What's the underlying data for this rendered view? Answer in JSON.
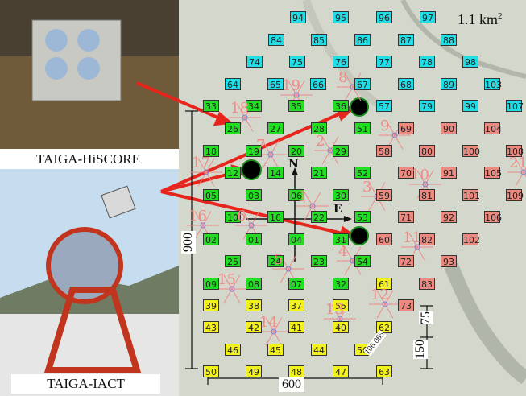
{
  "area_label": "1.1 km",
  "area_exponent": "2",
  "photo_labels": {
    "hiscore": "TAIGA-HiSCORE",
    "iact": "TAIGA-IACT"
  },
  "dimensions": {
    "width": "600",
    "height": "900",
    "spacing_a": "75",
    "spacing_b": "150",
    "diagonal": "106.065"
  },
  "compass": {
    "north": "N",
    "east": "E"
  },
  "colors": {
    "cyan": "#21dde6",
    "green": "#22dd22",
    "red": "#ec8a80",
    "yellow": "#f3f11d",
    "cluster_number": "#f08a84",
    "arrow": "#e8251d",
    "telescope": "#000000"
  },
  "stations": [
    {
      "id": "94",
      "color": "cyan"
    },
    {
      "id": "95",
      "color": "cyan"
    },
    {
      "id": "96",
      "color": "cyan"
    },
    {
      "id": "97",
      "color": "cyan"
    },
    {
      "id": "84",
      "color": "cyan"
    },
    {
      "id": "85",
      "color": "cyan"
    },
    {
      "id": "86",
      "color": "cyan"
    },
    {
      "id": "87",
      "color": "cyan"
    },
    {
      "id": "88",
      "color": "cyan"
    },
    {
      "id": "74",
      "color": "cyan"
    },
    {
      "id": "75",
      "color": "cyan"
    },
    {
      "id": "76",
      "color": "cyan"
    },
    {
      "id": "77",
      "color": "cyan"
    },
    {
      "id": "78",
      "color": "cyan"
    },
    {
      "id": "98",
      "color": "cyan"
    },
    {
      "id": "64",
      "color": "cyan"
    },
    {
      "id": "65",
      "color": "cyan"
    },
    {
      "id": "66",
      "color": "cyan"
    },
    {
      "id": "67",
      "color": "cyan"
    },
    {
      "id": "68",
      "color": "cyan"
    },
    {
      "id": "89",
      "color": "cyan"
    },
    {
      "id": "103",
      "color": "cyan"
    },
    {
      "id": "33",
      "color": "green"
    },
    {
      "id": "34",
      "color": "green"
    },
    {
      "id": "35",
      "color": "green"
    },
    {
      "id": "36",
      "color": "green"
    },
    {
      "id": "57",
      "color": "cyan"
    },
    {
      "id": "79",
      "color": "cyan"
    },
    {
      "id": "99",
      "color": "cyan"
    },
    {
      "id": "107",
      "color": "cyan"
    },
    {
      "id": "26",
      "color": "green"
    },
    {
      "id": "27",
      "color": "green"
    },
    {
      "id": "28",
      "color": "green"
    },
    {
      "id": "51",
      "color": "green"
    },
    {
      "id": "69",
      "color": "red"
    },
    {
      "id": "90",
      "color": "red"
    },
    {
      "id": "104",
      "color": "red"
    },
    {
      "id": "18",
      "color": "green"
    },
    {
      "id": "19",
      "color": "green"
    },
    {
      "id": "20",
      "color": "green"
    },
    {
      "id": "29",
      "color": "green"
    },
    {
      "id": "58",
      "color": "red"
    },
    {
      "id": "80",
      "color": "red"
    },
    {
      "id": "100",
      "color": "red"
    },
    {
      "id": "108",
      "color": "red"
    },
    {
      "id": "12",
      "color": "green"
    },
    {
      "id": "14",
      "color": "green"
    },
    {
      "id": "21",
      "color": "green"
    },
    {
      "id": "52",
      "color": "green"
    },
    {
      "id": "70",
      "color": "red"
    },
    {
      "id": "91",
      "color": "red"
    },
    {
      "id": "105",
      "color": "red"
    },
    {
      "id": "05",
      "color": "green"
    },
    {
      "id": "03",
      "color": "green"
    },
    {
      "id": "06",
      "color": "green"
    },
    {
      "id": "30",
      "color": "green"
    },
    {
      "id": "59",
      "color": "red"
    },
    {
      "id": "81",
      "color": "red"
    },
    {
      "id": "101",
      "color": "red"
    },
    {
      "id": "109",
      "color": "red"
    },
    {
      "id": "10",
      "color": "green"
    },
    {
      "id": "16",
      "color": "green"
    },
    {
      "id": "22",
      "color": "green"
    },
    {
      "id": "53",
      "color": "green"
    },
    {
      "id": "71",
      "color": "red"
    },
    {
      "id": "92",
      "color": "red"
    },
    {
      "id": "106",
      "color": "red"
    },
    {
      "id": "02",
      "color": "green"
    },
    {
      "id": "01",
      "color": "green"
    },
    {
      "id": "04",
      "color": "green"
    },
    {
      "id": "31",
      "color": "green"
    },
    {
      "id": "60",
      "color": "red"
    },
    {
      "id": "82",
      "color": "red"
    },
    {
      "id": "102",
      "color": "red"
    },
    {
      "id": "25",
      "color": "green"
    },
    {
      "id": "24",
      "color": "green"
    },
    {
      "id": "23",
      "color": "green"
    },
    {
      "id": "54",
      "color": "green"
    },
    {
      "id": "72",
      "color": "red"
    },
    {
      "id": "93",
      "color": "red"
    },
    {
      "id": "09",
      "color": "green"
    },
    {
      "id": "08",
      "color": "green"
    },
    {
      "id": "07",
      "color": "green"
    },
    {
      "id": "32",
      "color": "green"
    },
    {
      "id": "61",
      "color": "yellow"
    },
    {
      "id": "83",
      "color": "red"
    },
    {
      "id": "39",
      "color": "yellow"
    },
    {
      "id": "38",
      "color": "yellow"
    },
    {
      "id": "37",
      "color": "yellow"
    },
    {
      "id": "55",
      "color": "yellow"
    },
    {
      "id": "73",
      "color": "red"
    },
    {
      "id": "43",
      "color": "yellow"
    },
    {
      "id": "42",
      "color": "yellow"
    },
    {
      "id": "41",
      "color": "yellow"
    },
    {
      "id": "40",
      "color": "yellow"
    },
    {
      "id": "62",
      "color": "yellow"
    },
    {
      "id": "46",
      "color": "yellow"
    },
    {
      "id": "45",
      "color": "yellow"
    },
    {
      "id": "44",
      "color": "yellow"
    },
    {
      "id": "56",
      "color": "yellow"
    },
    {
      "id": "50",
      "color": "yellow"
    },
    {
      "id": "49",
      "color": "yellow"
    },
    {
      "id": "48",
      "color": "yellow"
    },
    {
      "id": "47",
      "color": "yellow"
    },
    {
      "id": "63",
      "color": "yellow"
    }
  ],
  "cluster_numbers": [
    "19",
    "18",
    "8",
    "9",
    "2",
    "17",
    "7",
    "10",
    "21",
    "3",
    "1",
    "16",
    "6",
    "11",
    "5",
    "4",
    "15",
    "14",
    "13",
    "12"
  ]
}
